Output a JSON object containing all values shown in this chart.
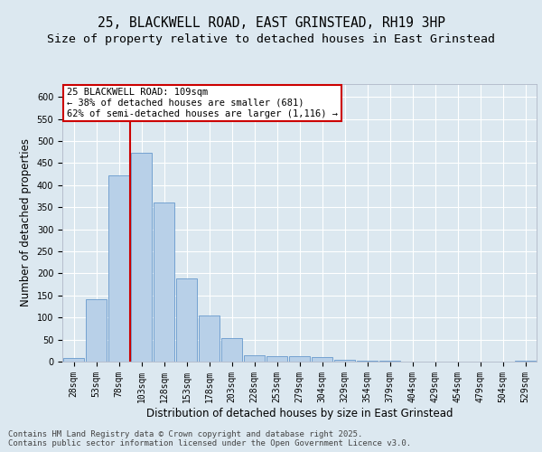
{
  "title_line1": "25, BLACKWELL ROAD, EAST GRINSTEAD, RH19 3HP",
  "title_line2": "Size of property relative to detached houses in East Grinstead",
  "xlabel": "Distribution of detached houses by size in East Grinstead",
  "ylabel": "Number of detached properties",
  "categories": [
    "28sqm",
    "53sqm",
    "78sqm",
    "103sqm",
    "128sqm",
    "153sqm",
    "178sqm",
    "203sqm",
    "228sqm",
    "253sqm",
    "279sqm",
    "304sqm",
    "329sqm",
    "354sqm",
    "379sqm",
    "404sqm",
    "429sqm",
    "454sqm",
    "479sqm",
    "504sqm",
    "529sqm"
  ],
  "values": [
    9,
    142,
    422,
    474,
    360,
    188,
    105,
    53,
    14,
    13,
    12,
    10,
    5,
    3,
    2,
    1,
    0,
    0,
    0,
    0,
    3
  ],
  "bar_color": "#b8d0e8",
  "bar_edge_color": "#6699cc",
  "vline_x": 2.5,
  "vline_color": "#cc0000",
  "annotation_text": "25 BLACKWELL ROAD: 109sqm\n← 38% of detached houses are smaller (681)\n62% of semi-detached houses are larger (1,116) →",
  "annotation_box_color": "#ffffff",
  "annotation_box_edge_color": "#cc0000",
  "ylim": [
    0,
    630
  ],
  "yticks": [
    0,
    50,
    100,
    150,
    200,
    250,
    300,
    350,
    400,
    450,
    500,
    550,
    600
  ],
  "bg_color": "#dce8f0",
  "plot_bg_color": "#dce8f0",
  "footer_text": "Contains HM Land Registry data © Crown copyright and database right 2025.\nContains public sector information licensed under the Open Government Licence v3.0.",
  "title_fontsize": 10.5,
  "subtitle_fontsize": 9.5,
  "label_fontsize": 8.5,
  "tick_fontsize": 7,
  "footer_fontsize": 6.5,
  "annot_fontsize": 7.5
}
